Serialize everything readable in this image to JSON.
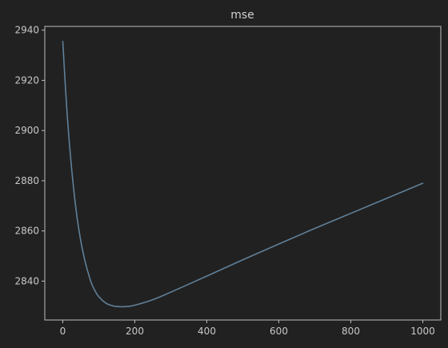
{
  "colors": {
    "background": "#212121",
    "axes": "#bdbdbd",
    "text": "#c8c8c8",
    "line": "#5f8099"
  },
  "chart_data": {
    "type": "line",
    "title": "mse",
    "xlabel": "",
    "ylabel": "",
    "xlim": [
      -50,
      1050
    ],
    "ylim": [
      2824.5,
      2941.5
    ],
    "xticks": [
      0,
      200,
      400,
      600,
      800,
      1000
    ],
    "xtick_labels": [
      "0",
      "200",
      "400",
      "600",
      "800",
      "1000"
    ],
    "yticks": [
      2840,
      2860,
      2880,
      2900,
      2920,
      2940
    ],
    "ytick_labels": [
      "2840",
      "2860",
      "2880",
      "2900",
      "2920",
      "2940"
    ],
    "grid": false,
    "series": [
      {
        "name": "mse",
        "x": [
          0,
          10,
          20,
          30,
          40,
          50,
          60,
          70,
          80,
          90,
          100,
          120,
          140,
          160,
          180,
          200,
          250,
          300,
          400,
          500,
          600,
          700,
          800,
          900,
          1000
        ],
        "values": [
          2935.5,
          2911,
          2892,
          2877,
          2865,
          2856,
          2849,
          2843.5,
          2839,
          2836,
          2833.8,
          2831.2,
          2830.1,
          2829.8,
          2829.9,
          2830.4,
          2832.6,
          2835.6,
          2842,
          2848.5,
          2854.8,
          2861,
          2867,
          2873,
          2879
        ]
      }
    ]
  }
}
